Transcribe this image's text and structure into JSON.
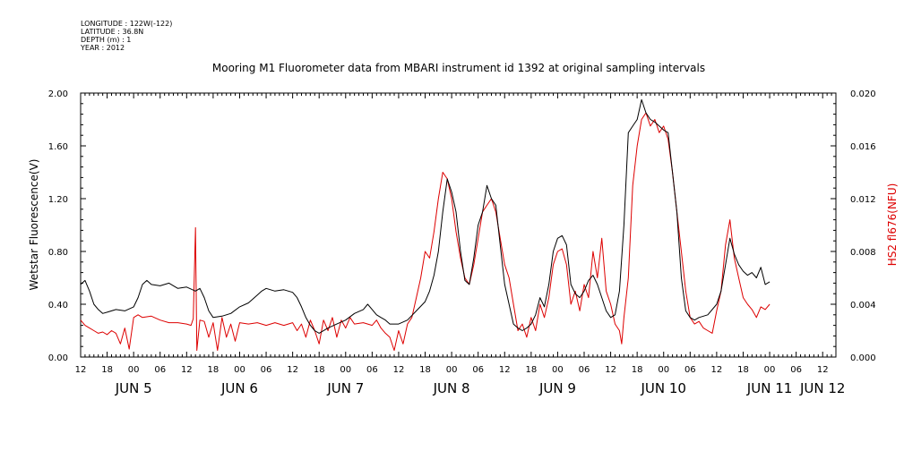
{
  "meta": {
    "longitude": "LONGITUDE : 122W(-122)",
    "latitude": "LATITUDE : 36.8N",
    "depth": "DEPTH (m) : 1",
    "year": "YEAR : 2012"
  },
  "chart_data": {
    "type": "line",
    "title": "Mooring M1 Fluorometer data from MBARI instrument id 1392 at original sampling intervals",
    "ylabel": "Wetstar Fluorescence(V)",
    "y2label": "HS2 fl676(NFU)",
    "ylim": [
      0,
      2.0
    ],
    "y2lim": [
      0,
      0.02
    ],
    "yticks": [
      "0.00",
      "0.40",
      "0.80",
      "1.20",
      "1.60",
      "2.00"
    ],
    "y2ticks": [
      "0.000",
      "0.004",
      "0.008",
      "0.012",
      "0.016",
      "0.020"
    ],
    "x_unit": "hours since JUN 4 12:00",
    "xlim": [
      0,
      171
    ],
    "hour_ticks": [
      "12",
      "18",
      "00",
      "06",
      "12",
      "18",
      "00",
      "06",
      "12",
      "18",
      "00",
      "06",
      "12",
      "18",
      "00",
      "06",
      "12",
      "18",
      "00",
      "06",
      "12",
      "18",
      "00",
      "06",
      "12",
      "18",
      "00",
      "06",
      "12"
    ],
    "day_labels": [
      {
        "label": "JUN  5",
        "x": 12
      },
      {
        "label": "JUN  6",
        "x": 36
      },
      {
        "label": "JUN  7",
        "x": 60
      },
      {
        "label": "JUN  8",
        "x": 84
      },
      {
        "label": "JUN  9",
        "x": 108
      },
      {
        "label": "JUN 10",
        "x": 132
      },
      {
        "label": "JUN 11",
        "x": 156
      },
      {
        "label": "JUN 12",
        "x": 168
      }
    ],
    "grid": false,
    "series": [
      {
        "name": "Wetstar Fluorescence(V)",
        "axis": "left",
        "color": "#000000",
        "points": [
          [
            0,
            0.55
          ],
          [
            1,
            0.58
          ],
          [
            2,
            0.5
          ],
          [
            3,
            0.4
          ],
          [
            4,
            0.36
          ],
          [
            5,
            0.33
          ],
          [
            6,
            0.34
          ],
          [
            8,
            0.36
          ],
          [
            10,
            0.35
          ],
          [
            12,
            0.38
          ],
          [
            13,
            0.45
          ],
          [
            14,
            0.55
          ],
          [
            15,
            0.58
          ],
          [
            16,
            0.55
          ],
          [
            18,
            0.54
          ],
          [
            20,
            0.56
          ],
          [
            22,
            0.52
          ],
          [
            24,
            0.53
          ],
          [
            26,
            0.5
          ],
          [
            27,
            0.52
          ],
          [
            28,
            0.45
          ],
          [
            29,
            0.35
          ],
          [
            30,
            0.3
          ],
          [
            32,
            0.31
          ],
          [
            34,
            0.33
          ],
          [
            36,
            0.38
          ],
          [
            38,
            0.41
          ],
          [
            40,
            0.47
          ],
          [
            41,
            0.5
          ],
          [
            42,
            0.52
          ],
          [
            44,
            0.5
          ],
          [
            46,
            0.51
          ],
          [
            48,
            0.49
          ],
          [
            49,
            0.45
          ],
          [
            50,
            0.38
          ],
          [
            51,
            0.3
          ],
          [
            52,
            0.24
          ],
          [
            53,
            0.2
          ],
          [
            54,
            0.18
          ],
          [
            56,
            0.22
          ],
          [
            58,
            0.25
          ],
          [
            60,
            0.28
          ],
          [
            62,
            0.33
          ],
          [
            64,
            0.36
          ],
          [
            65,
            0.4
          ],
          [
            66,
            0.36
          ],
          [
            67,
            0.32
          ],
          [
            68,
            0.3
          ],
          [
            69,
            0.28
          ],
          [
            70,
            0.25
          ],
          [
            72,
            0.25
          ],
          [
            74,
            0.28
          ],
          [
            76,
            0.35
          ],
          [
            78,
            0.42
          ],
          [
            79,
            0.5
          ],
          [
            80,
            0.62
          ],
          [
            81,
            0.8
          ],
          [
            82,
            1.1
          ],
          [
            83,
            1.35
          ],
          [
            84,
            1.25
          ],
          [
            85,
            1.1
          ],
          [
            86,
            0.8
          ],
          [
            87,
            0.58
          ],
          [
            88,
            0.55
          ],
          [
            89,
            0.75
          ],
          [
            90,
            1.0
          ],
          [
            91,
            1.1
          ],
          [
            92,
            1.3
          ],
          [
            93,
            1.2
          ],
          [
            94,
            1.15
          ],
          [
            95,
            0.85
          ],
          [
            96,
            0.55
          ],
          [
            97,
            0.4
          ],
          [
            98,
            0.25
          ],
          [
            99,
            0.22
          ],
          [
            100,
            0.2
          ],
          [
            101,
            0.22
          ],
          [
            102,
            0.25
          ],
          [
            103,
            0.32
          ],
          [
            104,
            0.45
          ],
          [
            105,
            0.38
          ],
          [
            106,
            0.55
          ],
          [
            107,
            0.8
          ],
          [
            108,
            0.9
          ],
          [
            109,
            0.92
          ],
          [
            110,
            0.85
          ],
          [
            111,
            0.55
          ],
          [
            112,
            0.48
          ],
          [
            113,
            0.45
          ],
          [
            114,
            0.5
          ],
          [
            115,
            0.58
          ],
          [
            116,
            0.62
          ],
          [
            117,
            0.55
          ],
          [
            118,
            0.45
          ],
          [
            119,
            0.35
          ],
          [
            120,
            0.3
          ],
          [
            121,
            0.32
          ],
          [
            122,
            0.5
          ],
          [
            123,
            1.0
          ],
          [
            124,
            1.7
          ],
          [
            125,
            1.75
          ],
          [
            126,
            1.8
          ],
          [
            127,
            1.95
          ],
          [
            128,
            1.85
          ],
          [
            129,
            1.8
          ],
          [
            130,
            1.78
          ],
          [
            131,
            1.75
          ],
          [
            132,
            1.72
          ],
          [
            133,
            1.7
          ],
          [
            134,
            1.4
          ],
          [
            135,
            1.1
          ],
          [
            136,
            0.6
          ],
          [
            137,
            0.35
          ],
          [
            138,
            0.3
          ],
          [
            139,
            0.28
          ],
          [
            140,
            0.3
          ],
          [
            142,
            0.32
          ],
          [
            144,
            0.4
          ],
          [
            145,
            0.5
          ],
          [
            146,
            0.7
          ],
          [
            147,
            0.9
          ],
          [
            148,
            0.78
          ],
          [
            149,
            0.7
          ],
          [
            150,
            0.65
          ],
          [
            151,
            0.62
          ],
          [
            152,
            0.64
          ],
          [
            153,
            0.6
          ],
          [
            154,
            0.68
          ],
          [
            155,
            0.55
          ],
          [
            156,
            0.57
          ]
        ]
      },
      {
        "name": "HS2 fl676(NFU)",
        "axis": "right",
        "color": "#dd0000",
        "points": [
          [
            0,
            0.0028
          ],
          [
            1,
            0.0024
          ],
          [
            2,
            0.0022
          ],
          [
            3,
            0.002
          ],
          [
            4,
            0.0018
          ],
          [
            5,
            0.0019
          ],
          [
            6,
            0.0017
          ],
          [
            7,
            0.002
          ],
          [
            8,
            0.0018
          ],
          [
            9,
            0.001
          ],
          [
            10,
            0.0022
          ],
          [
            11,
            0.0006
          ],
          [
            12,
            0.003
          ],
          [
            13,
            0.0032
          ],
          [
            14,
            0.003
          ],
          [
            16,
            0.0031
          ],
          [
            18,
            0.0028
          ],
          [
            20,
            0.0026
          ],
          [
            22,
            0.0026
          ],
          [
            24,
            0.0025
          ],
          [
            25,
            0.0024
          ],
          [
            25.5,
            0.0029
          ],
          [
            26,
            0.0098
          ],
          [
            26.3,
            0.0005
          ],
          [
            27,
            0.0028
          ],
          [
            28,
            0.0027
          ],
          [
            29,
            0.0015
          ],
          [
            30,
            0.0026
          ],
          [
            31,
            0.0005
          ],
          [
            32,
            0.003
          ],
          [
            33,
            0.0015
          ],
          [
            34,
            0.0025
          ],
          [
            35,
            0.0012
          ],
          [
            36,
            0.0026
          ],
          [
            38,
            0.0025
          ],
          [
            40,
            0.0026
          ],
          [
            42,
            0.0024
          ],
          [
            44,
            0.0026
          ],
          [
            46,
            0.0024
          ],
          [
            48,
            0.0026
          ],
          [
            49,
            0.002
          ],
          [
            50,
            0.0025
          ],
          [
            51,
            0.0015
          ],
          [
            52,
            0.0028
          ],
          [
            53,
            0.002
          ],
          [
            54,
            0.001
          ],
          [
            55,
            0.0028
          ],
          [
            56,
            0.002
          ],
          [
            57,
            0.003
          ],
          [
            58,
            0.0015
          ],
          [
            59,
            0.0028
          ],
          [
            60,
            0.0022
          ],
          [
            61,
            0.003
          ],
          [
            62,
            0.0025
          ],
          [
            64,
            0.0026
          ],
          [
            66,
            0.0024
          ],
          [
            67,
            0.0028
          ],
          [
            68,
            0.0022
          ],
          [
            69,
            0.0018
          ],
          [
            70,
            0.0015
          ],
          [
            71,
            0.0005
          ],
          [
            72,
            0.002
          ],
          [
            73,
            0.001
          ],
          [
            74,
            0.0025
          ],
          [
            75,
            0.003
          ],
          [
            76,
            0.0045
          ],
          [
            77,
            0.006
          ],
          [
            78,
            0.008
          ],
          [
            79,
            0.0075
          ],
          [
            80,
            0.0095
          ],
          [
            81,
            0.012
          ],
          [
            82,
            0.014
          ],
          [
            83,
            0.0135
          ],
          [
            84,
            0.012
          ],
          [
            85,
            0.0095
          ],
          [
            86,
            0.0075
          ],
          [
            87,
            0.006
          ],
          [
            88,
            0.0055
          ],
          [
            89,
            0.007
          ],
          [
            90,
            0.009
          ],
          [
            91,
            0.011
          ],
          [
            92,
            0.0115
          ],
          [
            93,
            0.012
          ],
          [
            94,
            0.011
          ],
          [
            95,
            0.009
          ],
          [
            96,
            0.007
          ],
          [
            97,
            0.006
          ],
          [
            98,
            0.004
          ],
          [
            99,
            0.002
          ],
          [
            100,
            0.0025
          ],
          [
            101,
            0.0015
          ],
          [
            102,
            0.003
          ],
          [
            103,
            0.002
          ],
          [
            104,
            0.004
          ],
          [
            105,
            0.003
          ],
          [
            106,
            0.0045
          ],
          [
            107,
            0.007
          ],
          [
            108,
            0.008
          ],
          [
            109,
            0.0082
          ],
          [
            110,
            0.007
          ],
          [
            111,
            0.004
          ],
          [
            112,
            0.005
          ],
          [
            113,
            0.0035
          ],
          [
            114,
            0.0055
          ],
          [
            115,
            0.0045
          ],
          [
            116,
            0.008
          ],
          [
            117,
            0.006
          ],
          [
            118,
            0.009
          ],
          [
            119,
            0.005
          ],
          [
            120,
            0.004
          ],
          [
            121,
            0.0025
          ],
          [
            122,
            0.002
          ],
          [
            122.5,
            0.001
          ],
          [
            123,
            0.003
          ],
          [
            124,
            0.006
          ],
          [
            125,
            0.013
          ],
          [
            126,
            0.016
          ],
          [
            127,
            0.018
          ],
          [
            128,
            0.0185
          ],
          [
            129,
            0.0175
          ],
          [
            130,
            0.018
          ],
          [
            131,
            0.017
          ],
          [
            132,
            0.0175
          ],
          [
            133,
            0.0165
          ],
          [
            134,
            0.014
          ],
          [
            135,
            0.011
          ],
          [
            136,
            0.008
          ],
          [
            137,
            0.005
          ],
          [
            138,
            0.003
          ],
          [
            139,
            0.0025
          ],
          [
            140,
            0.0027
          ],
          [
            141,
            0.0022
          ],
          [
            142,
            0.002
          ],
          [
            143,
            0.0018
          ],
          [
            144,
            0.0035
          ],
          [
            145,
            0.005
          ],
          [
            146,
            0.0085
          ],
          [
            147,
            0.0104
          ],
          [
            148,
            0.0075
          ],
          [
            149,
            0.006
          ],
          [
            150,
            0.0045
          ],
          [
            151,
            0.004
          ],
          [
            152,
            0.0036
          ],
          [
            153,
            0.003
          ],
          [
            154,
            0.0038
          ],
          [
            155,
            0.0036
          ],
          [
            156,
            0.004
          ]
        ]
      }
    ]
  }
}
